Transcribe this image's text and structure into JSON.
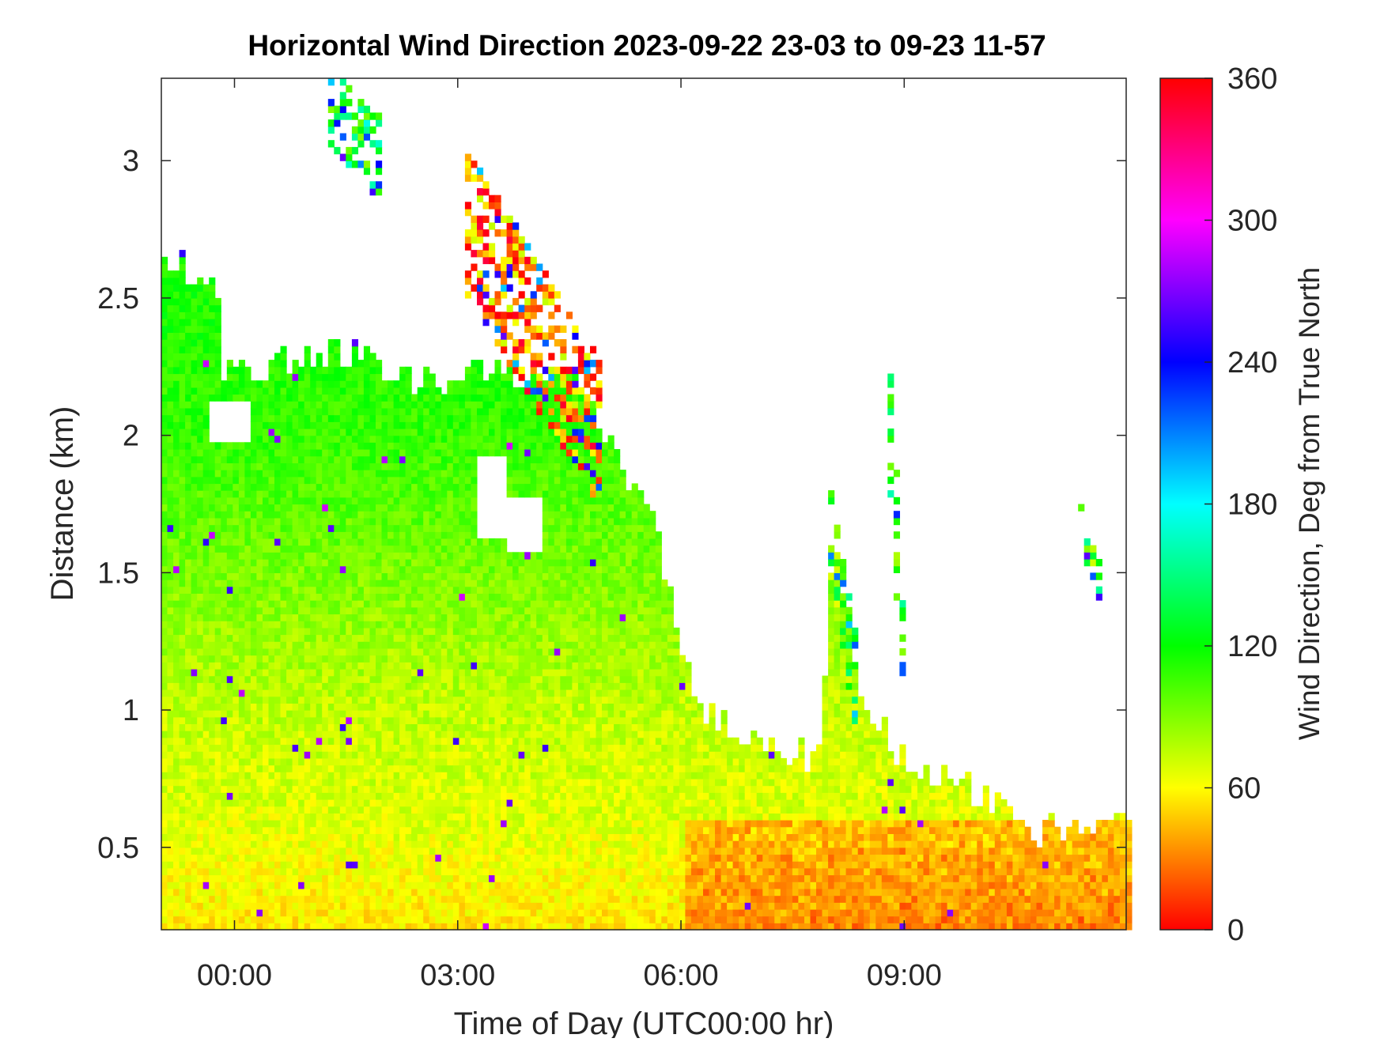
{
  "chart_data": {
    "type": "heatmap",
    "title": "Horizontal Wind Direction 2023-09-22 23-03 to 09-23 11-57",
    "xlabel": "Time of Day (UTC00:00 hr)",
    "ylabel": "Distance (km)",
    "colorbar_label": "Wind Direction, Deg from True North",
    "x_range_hours": [
      -0.983,
      11.983
    ],
    "x_ticks": [
      {
        "value": 0,
        "label": "00:00"
      },
      {
        "value": 3,
        "label": "03:00"
      },
      {
        "value": 6,
        "label": "06:00"
      },
      {
        "value": 9,
        "label": "09:00"
      }
    ],
    "y_range_km": [
      0.2,
      3.3
    ],
    "y_ticks": [
      {
        "value": 0.5,
        "label": "0.5"
      },
      {
        "value": 1,
        "label": "1"
      },
      {
        "value": 1.5,
        "label": "1.5"
      },
      {
        "value": 2,
        "label": "2"
      },
      {
        "value": 2.5,
        "label": "2.5"
      },
      {
        "value": 3,
        "label": "3"
      }
    ],
    "colorbar_range_deg": [
      0,
      360
    ],
    "colorbar_ticks": [
      {
        "value": 0,
        "label": "0"
      },
      {
        "value": 60,
        "label": "60"
      },
      {
        "value": 120,
        "label": "120"
      },
      {
        "value": 180,
        "label": "180"
      },
      {
        "value": 240,
        "label": "240"
      },
      {
        "value": 300,
        "label": "300"
      },
      {
        "value": 360,
        "label": "360"
      }
    ],
    "colormap": "hsv",
    "colormap_stops": [
      {
        "value": 0,
        "color": "#ff0000"
      },
      {
        "value": 60,
        "color": "#ffff00"
      },
      {
        "value": 120,
        "color": "#00ff00"
      },
      {
        "value": 180,
        "color": "#00ffff"
      },
      {
        "value": 240,
        "color": "#0000ff"
      },
      {
        "value": 300,
        "color": "#ff00ff"
      },
      {
        "value": 360,
        "color": "#ff0000"
      }
    ],
    "grid": false,
    "data_extent_top_km": [
      {
        "t": -0.98,
        "h": 2.62
      },
      {
        "t": -0.3,
        "h": 2.58
      },
      {
        "t": -0.2,
        "h": 2.2
      },
      {
        "t": 0.5,
        "h": 2.25
      },
      {
        "t": 1.5,
        "h": 2.3
      },
      {
        "t": 2.5,
        "h": 2.18
      },
      {
        "t": 3.5,
        "h": 2.22
      },
      {
        "t": 4.0,
        "h": 2.15
      },
      {
        "t": 4.6,
        "h": 2.2
      },
      {
        "t": 4.9,
        "h": 2.0
      },
      {
        "t": 5.2,
        "h": 1.85
      },
      {
        "t": 5.6,
        "h": 1.7
      },
      {
        "t": 6.0,
        "h": 1.2
      },
      {
        "t": 6.3,
        "h": 0.95
      },
      {
        "t": 7.0,
        "h": 0.9
      },
      {
        "t": 7.8,
        "h": 0.8
      },
      {
        "t": 8.0,
        "h": 1.55
      },
      {
        "t": 8.4,
        "h": 1.0
      },
      {
        "t": 9.0,
        "h": 0.8
      },
      {
        "t": 10.0,
        "h": 0.68
      },
      {
        "t": 10.8,
        "h": 0.55
      },
      {
        "t": 11.98,
        "h": 0.62
      }
    ],
    "direction_by_height_deg": [
      {
        "h": 0.2,
        "dir": 55
      },
      {
        "h": 0.6,
        "dir": 68
      },
      {
        "h": 1.0,
        "dir": 75
      },
      {
        "h": 1.5,
        "dir": 92
      },
      {
        "h": 2.0,
        "dir": 108
      },
      {
        "h": 2.5,
        "dir": 115
      },
      {
        "h": 3.3,
        "dir": 118
      }
    ],
    "gaps": [
      {
        "t": [
          3.2,
          3.6
        ],
        "h": [
          1.6,
          1.9
        ]
      },
      {
        "t": [
          3.6,
          4.1
        ],
        "h": [
          1.55,
          1.75
        ]
      },
      {
        "t": [
          -0.35,
          0.2
        ],
        "h": [
          1.95,
          2.1
        ]
      }
    ],
    "plumes": [
      {
        "t": [
          3.05,
          4.9
        ],
        "h_base": [
          2.6,
          1.8
        ],
        "width_h": 0.45,
        "dir": 30
      },
      {
        "t": [
          1.2,
          1.9
        ],
        "h_base": [
          3.1,
          2.9
        ],
        "width_h": 0.25,
        "dir": 130
      },
      {
        "t": [
          7.9,
          8.3
        ],
        "h_base": [
          1.6,
          1.0
        ],
        "width_h": 0.3,
        "dir": 110
      },
      {
        "t": [
          8.7,
          9.0
        ],
        "h_base": [
          2.2,
          0.8
        ],
        "width_h": 0.4,
        "dir": 120
      },
      {
        "t": [
          11.3,
          11.6
        ],
        "h_base": [
          1.6,
          1.4
        ],
        "width_h": 0.15,
        "dir": 115
      }
    ]
  }
}
